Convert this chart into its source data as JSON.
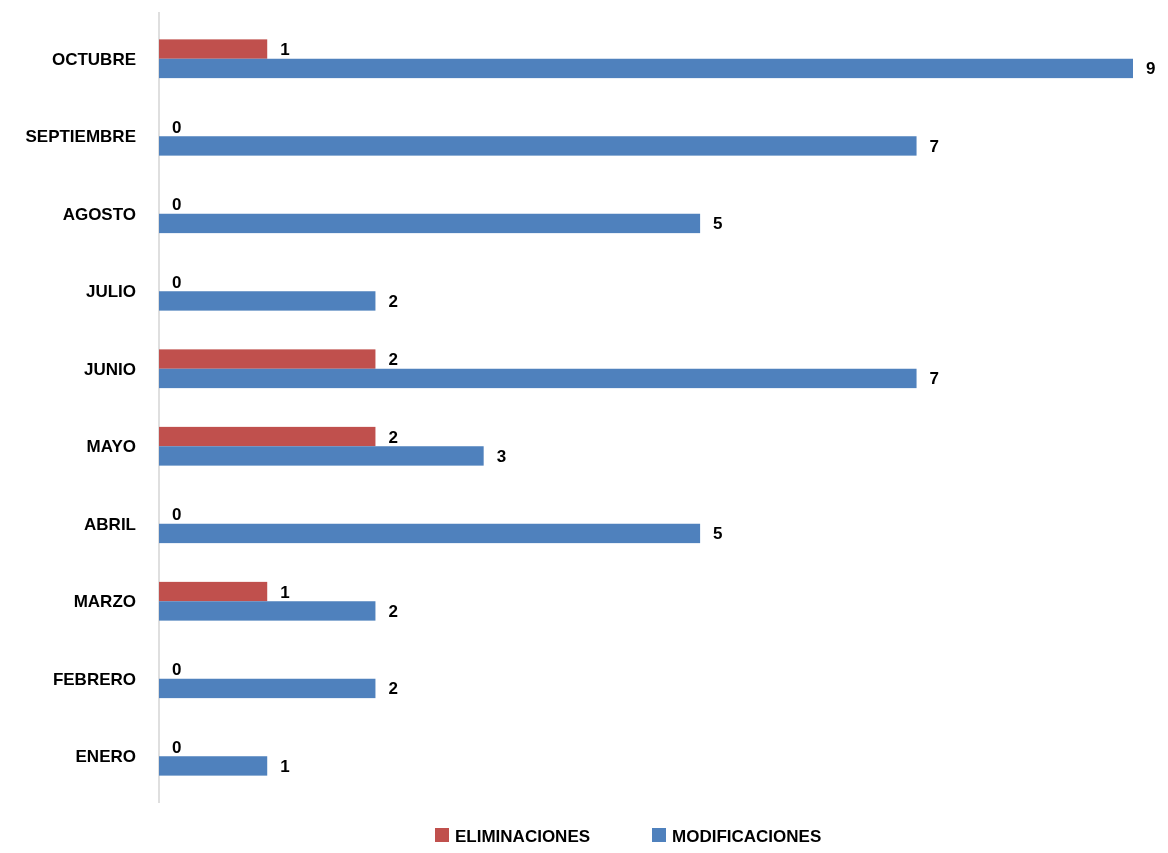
{
  "chart_data": {
    "type": "bar",
    "orientation": "horizontal",
    "categories": [
      "OCTUBRE",
      "SEPTIEMBRE",
      "AGOSTO",
      "JULIO",
      "JUNIO",
      "MAYO",
      "ABRIL",
      "MARZO",
      "FEBRERO",
      "ENERO"
    ],
    "series": [
      {
        "name": "ELIMINACIONES",
        "color": "#c0504d",
        "values": [
          1,
          0,
          0,
          0,
          2,
          2,
          0,
          1,
          0,
          0
        ]
      },
      {
        "name": "MODIFICACIONES",
        "color": "#4f81bd",
        "values": [
          9,
          7,
          5,
          2,
          7,
          3,
          5,
          2,
          2,
          1
        ]
      }
    ],
    "xlim": [
      0,
      9
    ],
    "data_labels": true,
    "legend": "bottom",
    "tick_labels": "y"
  }
}
